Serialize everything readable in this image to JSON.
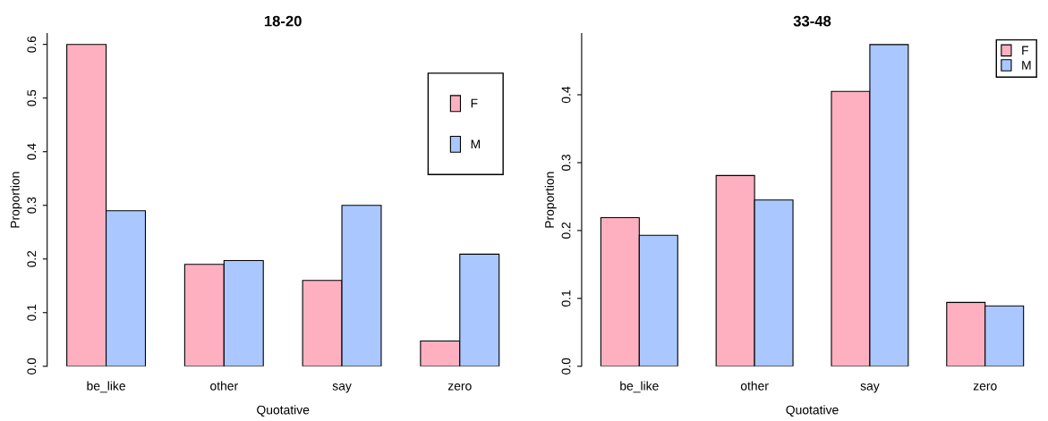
{
  "chart_data": [
    {
      "type": "bar",
      "title": "18-20",
      "xlabel": "Quotative",
      "ylabel": "Proportion",
      "categories": [
        "be_like",
        "other",
        "say",
        "zero"
      ],
      "series": [
        {
          "name": "F",
          "color": "#ffb0c0",
          "values": [
            0.6,
            0.19,
            0.16,
            0.047
          ]
        },
        {
          "name": "M",
          "color": "#aac8ff",
          "values": [
            0.29,
            0.197,
            0.3,
            0.209
          ]
        }
      ],
      "ylim": [
        0,
        0.62
      ],
      "yticks": [
        {
          "value": 0,
          "label": "0.0"
        },
        0.1,
        0.2,
        0.3,
        0.4,
        0.5,
        0.6
      ],
      "legend": "top right",
      "grid": false
    },
    {
      "type": "bar",
      "title": "33-48",
      "xlabel": "Quotative",
      "ylabel": "Proportion",
      "categories": [
        "be_like",
        "other",
        "say",
        "zero"
      ],
      "series": [
        {
          "name": "F",
          "color": "#ffb0c0",
          "values": [
            0.219,
            0.281,
            0.405,
            0.094
          ]
        },
        {
          "name": "M",
          "color": "#aac8ff",
          "values": [
            0.193,
            0.245,
            0.474,
            0.089
          ]
        }
      ],
      "ylim": [
        0,
        0.49
      ],
      "yticks": [
        {
          "value": 0,
          "label": "0.0"
        },
        0.1,
        0.2,
        0.3,
        0.4
      ],
      "legend": "top right",
      "grid": false
    }
  ]
}
